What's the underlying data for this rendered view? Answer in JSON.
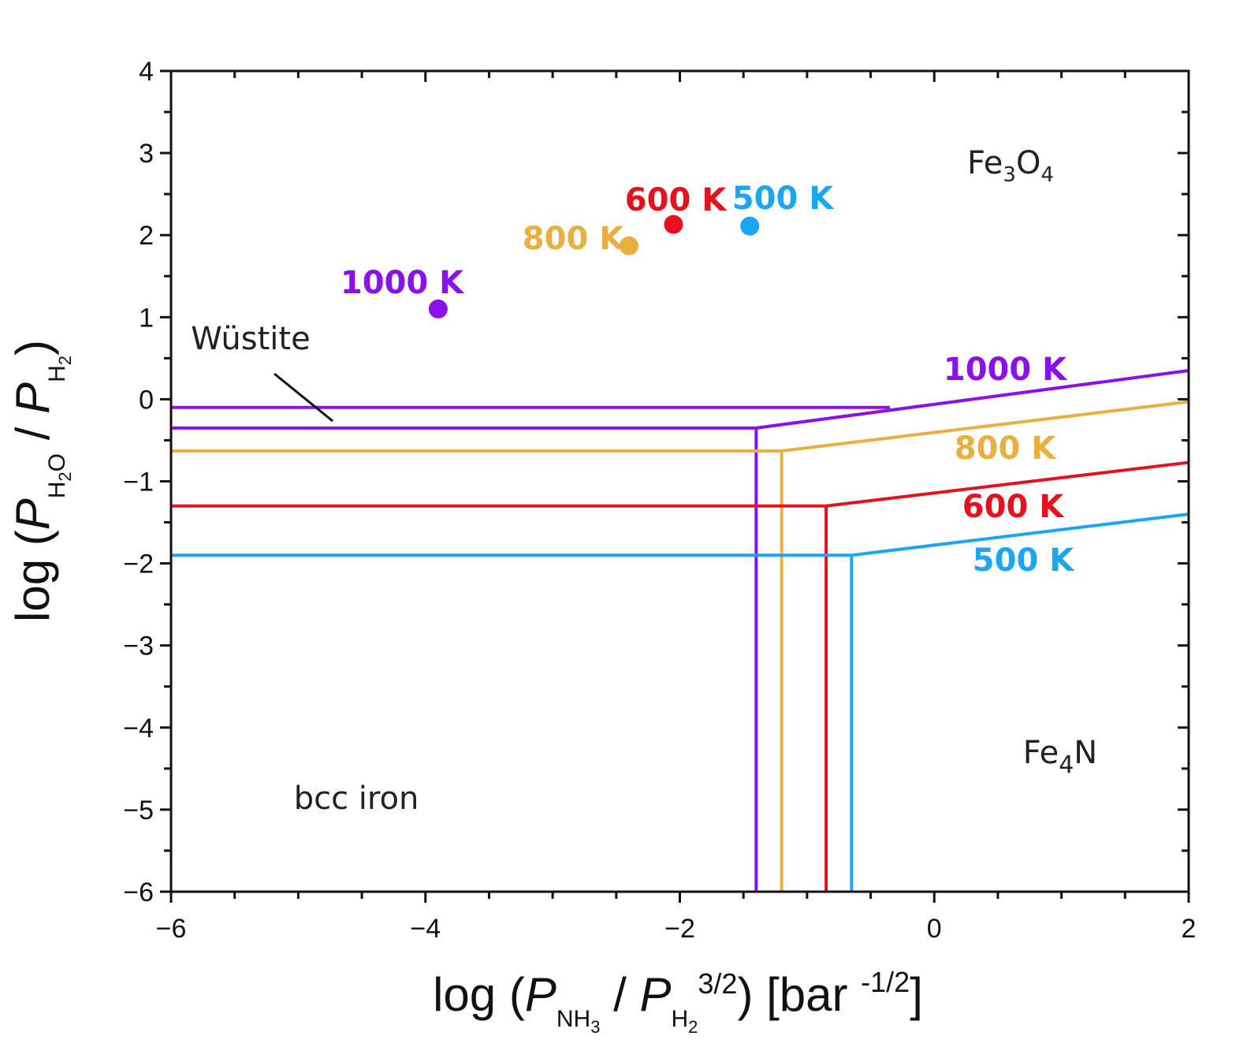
{
  "chart_data": {
    "type": "line",
    "xlim": [
      -6,
      2
    ],
    "ylim": [
      -6,
      4
    ],
    "x_ticks": [
      "−6",
      "−4",
      "−2",
      "0",
      "2"
    ],
    "y_ticks": [
      "4",
      "3",
      "2",
      "1",
      "0",
      "−1",
      "−2",
      "−3",
      "−4",
      "−5",
      "−6"
    ],
    "x_tick_values": [
      -6,
      -4,
      -2,
      0,
      2
    ],
    "y_tick_values": [
      4,
      3,
      2,
      1,
      0,
      -1,
      -2,
      -3,
      -4,
      -5,
      -6
    ],
    "xlabel": {
      "prefix": "log (",
      "P1": "P",
      "sub1": "NH",
      "sub1_sub": "3",
      "sep": " / ",
      "P2": "P",
      "sub2": "H",
      "sub2_sub": "2",
      "sup2": "3/2",
      "suffix": ") [bar ",
      "unit_sup": "-1/2",
      "end": "]"
    },
    "ylabel": {
      "prefix": "log (",
      "P1": "P",
      "sub1": "H",
      "sub1_sub": "2",
      "sub1_tail": "O",
      "sep": " / ",
      "P2": "P",
      "sub2": "H",
      "sub2_sub": "2",
      "end": ")"
    },
    "grid": false,
    "series": [
      {
        "name": "1000 K",
        "color": "#8B10F0",
        "boundary_lines": [
          {
            "x": [
              -6,
              -0.35
            ],
            "y": [
              -0.1,
              -0.1
            ]
          },
          {
            "x": [
              -6,
              -1.4,
              2
            ],
            "y": [
              -0.35,
              -0.35,
              0.35
            ]
          },
          {
            "x": [
              -1.4,
              -1.4
            ],
            "y": [
              -0.35,
              -6
            ]
          }
        ],
        "point": {
          "x": -3.9,
          "y": 1.1
        }
      },
      {
        "name": "800 K",
        "color": "#E8B040",
        "boundary_lines": [
          {
            "x": [
              -6,
              -1.2,
              2
            ],
            "y": [
              -0.63,
              -0.63,
              -0.03
            ]
          },
          {
            "x": [
              -1.2,
              -1.2
            ],
            "y": [
              -0.63,
              -6
            ]
          }
        ],
        "point": {
          "x": -2.4,
          "y": 1.87
        }
      },
      {
        "name": "600 K",
        "color": "#E8101E",
        "boundary_lines": [
          {
            "x": [
              -6,
              -0.85,
              2
            ],
            "y": [
              -1.3,
              -1.3,
              -0.77
            ]
          },
          {
            "x": [
              -0.85,
              -0.85
            ],
            "y": [
              -1.3,
              -6
            ]
          }
        ],
        "point": {
          "x": -2.05,
          "y": 2.13
        }
      },
      {
        "name": "500 K",
        "color": "#1AA5F5",
        "boundary_lines": [
          {
            "x": [
              -6,
              -0.65,
              2
            ],
            "y": [
              -1.9,
              -1.9,
              -1.4
            ]
          },
          {
            "x": [
              -0.65,
              -0.65
            ],
            "y": [
              -1.9,
              -6
            ]
          }
        ],
        "point": {
          "x": -1.45,
          "y": 2.11
        }
      }
    ],
    "point_labels": [
      {
        "text": "1000 K",
        "x": -3.9,
        "y": 1.1,
        "color": "#8B10F0"
      },
      {
        "text": "800 K",
        "x": -2.4,
        "y": 1.87,
        "color": "#E8B040"
      },
      {
        "text": "600 K",
        "x": -2.05,
        "y": 2.13,
        "color": "#E8101E"
      },
      {
        "text": "500 K",
        "x": -1.45,
        "y": 2.11,
        "color": "#1AA5F5"
      }
    ],
    "line_labels": [
      {
        "text": "1000 K",
        "color": "#8B10F0"
      },
      {
        "text": "800 K",
        "color": "#E8B040"
      },
      {
        "text": "600 K",
        "color": "#E8101E"
      },
      {
        "text": "500 K",
        "color": "#1AA5F5"
      }
    ],
    "regions": [
      {
        "text": "Fe",
        "sub": "3",
        "mid": "O",
        "sub2": "4"
      },
      {
        "text": "Fe",
        "sub": "4",
        "mid": "N"
      },
      {
        "text": "bcc iron"
      },
      {
        "text": "Wüstite"
      }
    ]
  }
}
